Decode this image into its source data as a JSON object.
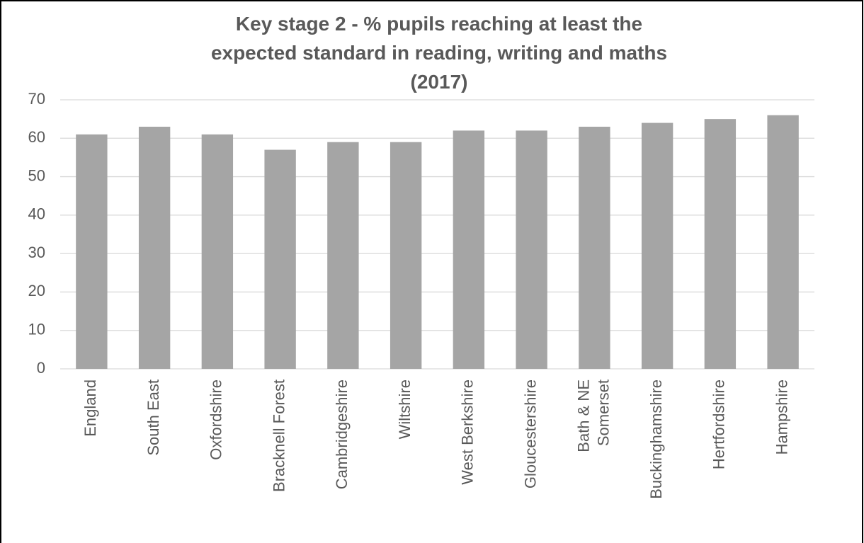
{
  "chart_data": {
    "type": "bar",
    "title": "Key stage 2 - % pupils reaching at least the expected standard in reading, writing and maths (2017)",
    "categories": [
      "England",
      "South East",
      "Oxfordshire",
      "Bracknell Forest",
      "Cambridgeshire",
      "Wiltshire",
      "West Berkshire",
      "Gloucestershire",
      "Bath & NE Somerset",
      "Buckinghamshire",
      "Hertfordshire",
      "Hampshire"
    ],
    "values": [
      61,
      63,
      61,
      57,
      59,
      59,
      62,
      62,
      63,
      64,
      65,
      66
    ],
    "color": "#a5a5a5",
    "ylim": [
      0,
      70
    ],
    "yticks": [
      0,
      10,
      20,
      30,
      40,
      50,
      60,
      70
    ],
    "grid": true
  }
}
